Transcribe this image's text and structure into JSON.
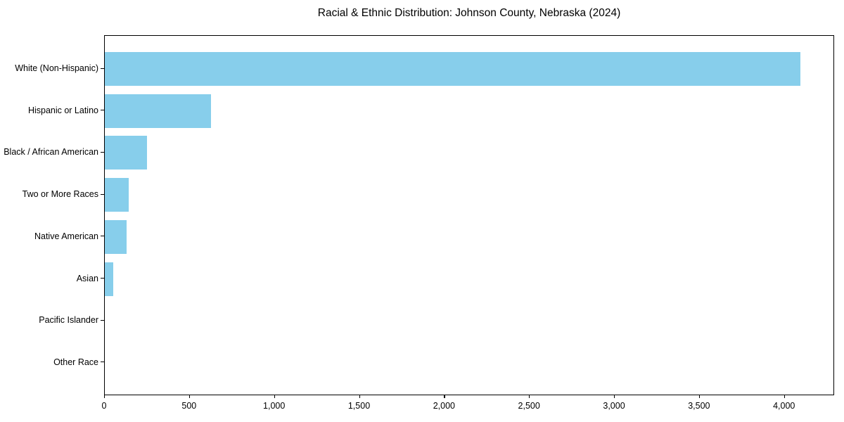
{
  "chart_data": {
    "type": "bar",
    "orientation": "horizontal",
    "title": "Racial & Ethnic Distribution: Johnson County, Nebraska (2024)",
    "categories": [
      "White (Non-Hispanic)",
      "Hispanic or Latino",
      "Black / African American",
      "Two or More Races",
      "Native American",
      "Asian",
      "Pacific Islander",
      "Other Race"
    ],
    "values": [
      4090,
      625,
      250,
      140,
      130,
      50,
      0,
      0
    ],
    "xlabel": "",
    "ylabel": "",
    "xlim": [
      0,
      4295
    ],
    "xticks": [
      0,
      500,
      1000,
      1500,
      2000,
      2500,
      3000,
      3500,
      4000
    ],
    "xtick_labels": [
      "0",
      "500",
      "1,000",
      "1,500",
      "2,000",
      "2,500",
      "3,000",
      "3,500",
      "4,000"
    ],
    "bar_color": "#87CEEB",
    "grid": false,
    "legend": null
  }
}
